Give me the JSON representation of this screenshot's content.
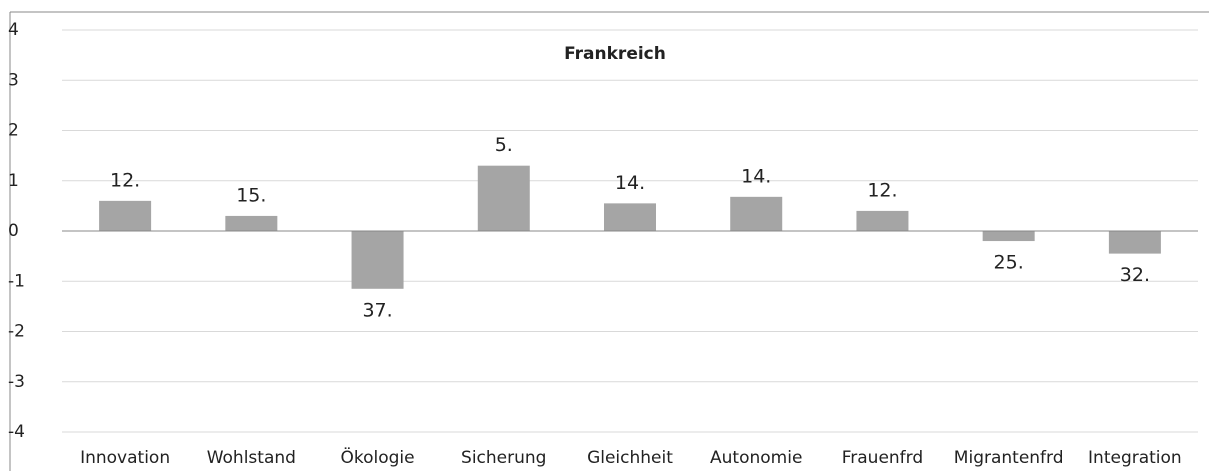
{
  "chart_data": {
    "type": "bar",
    "title": "Frankreich",
    "categories": [
      "Innovation",
      "Wohlstand",
      "Ökologie",
      "Sicherung",
      "Gleichheit",
      "Autonomie",
      "Frauenfrd",
      "Migrantenfrd",
      "Integration"
    ],
    "values": [
      0.6,
      0.3,
      -1.15,
      1.3,
      0.55,
      0.68,
      0.4,
      -0.2,
      -0.45
    ],
    "annotations": [
      "12.",
      "15.",
      "37.",
      "5.",
      "14.",
      "14.",
      "12.",
      "25.",
      "32."
    ],
    "color": "#a5a5a5",
    "ylim": [
      -4,
      4
    ],
    "yticks": [
      -4,
      -3,
      -2,
      -1,
      0,
      1,
      2,
      3,
      4
    ],
    "grid": true
  }
}
